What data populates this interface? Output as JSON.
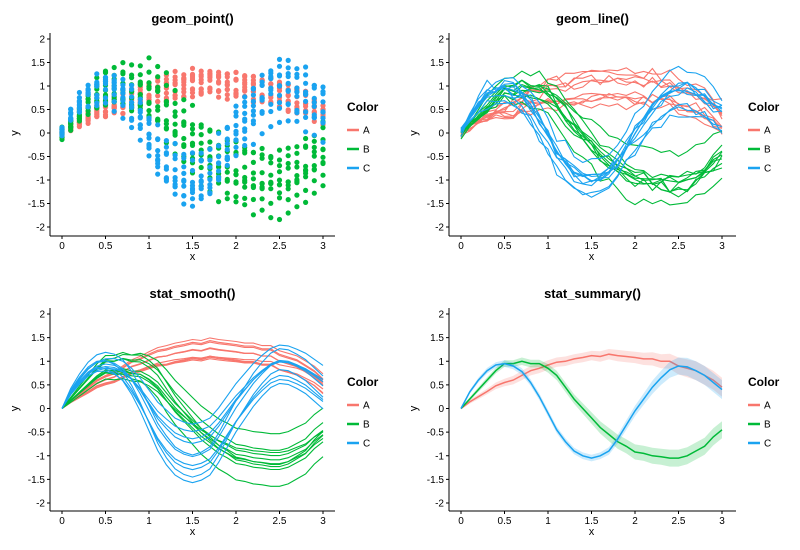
{
  "colors": {
    "A": "#F8766D",
    "B": "#00BA38",
    "C": "#1AA3F0"
  },
  "legend": {
    "title": "Color",
    "keys": [
      "A",
      "B",
      "C"
    ],
    "placement": "right"
  },
  "chart_data": [
    {
      "title": "geom_point()",
      "type": "scatter",
      "xlabel": "x",
      "ylabel": "y",
      "xlim": [
        0,
        3
      ],
      "ylim": [
        -2.1,
        2.05
      ],
      "xticks": [
        "0",
        "0.5",
        "1",
        "1.5",
        "2",
        "2.5",
        "3"
      ],
      "yticks": [
        "-2",
        "-1.5",
        "-1",
        "-0.5",
        "0",
        "0.5",
        "1",
        "1.5",
        "2"
      ],
      "grid": false,
      "note": "10 replicate noisy series per group sampled on x = 0..3 step 0.1",
      "series": [
        {
          "name": "A",
          "x": [
            0,
            0.1,
            0.2,
            0.3,
            0.4,
            0.5,
            0.6,
            0.7,
            0.8,
            0.9,
            1.0,
            1.1,
            1.2,
            1.3,
            1.4,
            1.5,
            1.6,
            1.7,
            1.8,
            1.9,
            2.0,
            2.1,
            2.2,
            2.3,
            2.4,
            2.5,
            2.6,
            2.7,
            2.8,
            2.9,
            3.0
          ],
          "values": [
            0.0,
            0.14,
            0.25,
            0.36,
            0.48,
            0.55,
            0.6,
            0.7,
            0.8,
            0.85,
            0.92,
            0.98,
            1.0,
            1.05,
            1.08,
            1.12,
            1.1,
            1.15,
            1.12,
            1.1,
            1.08,
            1.05,
            1.05,
            1.0,
            1.0,
            0.9,
            0.85,
            0.8,
            0.7,
            0.6,
            0.45
          ]
        },
        {
          "name": "B",
          "x": [
            0,
            0.1,
            0.2,
            0.3,
            0.4,
            0.5,
            0.6,
            0.7,
            0.8,
            0.9,
            1.0,
            1.1,
            1.2,
            1.3,
            1.4,
            1.5,
            1.6,
            1.7,
            1.8,
            1.9,
            2.0,
            2.1,
            2.2,
            2.3,
            2.4,
            2.5,
            2.6,
            2.7,
            2.8,
            2.9,
            3.0
          ],
          "values": [
            0.0,
            0.2,
            0.4,
            0.6,
            0.8,
            0.95,
            0.95,
            1.0,
            0.95,
            0.95,
            0.85,
            0.7,
            0.45,
            0.2,
            0.0,
            -0.2,
            -0.4,
            -0.55,
            -0.7,
            -0.8,
            -0.92,
            -0.95,
            -1.0,
            -1.02,
            -1.05,
            -1.05,
            -1.0,
            -0.9,
            -0.8,
            -0.6,
            -0.45
          ]
        },
        {
          "name": "C",
          "x": [
            0,
            0.1,
            0.2,
            0.3,
            0.4,
            0.5,
            0.6,
            0.7,
            0.8,
            0.9,
            1.0,
            1.1,
            1.2,
            1.3,
            1.4,
            1.5,
            1.6,
            1.7,
            1.8,
            1.9,
            2.0,
            2.1,
            2.2,
            2.3,
            2.4,
            2.5,
            2.6,
            2.7,
            2.8,
            2.9,
            3.0
          ],
          "values": [
            0.0,
            0.35,
            0.6,
            0.8,
            0.92,
            0.95,
            0.9,
            0.78,
            0.55,
            0.25,
            -0.1,
            -0.45,
            -0.7,
            -0.9,
            -1.0,
            -1.05,
            -1.0,
            -0.9,
            -0.65,
            -0.35,
            -0.05,
            0.2,
            0.45,
            0.65,
            0.82,
            0.9,
            0.88,
            0.8,
            0.7,
            0.55,
            0.4
          ]
        }
      ]
    },
    {
      "title": "geom_line()",
      "type": "line",
      "xlabel": "x",
      "ylabel": "y",
      "xlim": [
        0,
        3
      ],
      "ylim": [
        -2.1,
        2.05
      ],
      "xticks": [
        "0",
        "0.5",
        "1",
        "1.5",
        "2",
        "2.5",
        "3"
      ],
      "yticks": [
        "-2",
        "-1.5",
        "-1",
        "-0.5",
        "0",
        "0.5",
        "1",
        "1.5",
        "2"
      ],
      "grid": false,
      "note": "10 replicate noisy lines per group, same data as geom_point()",
      "series": [
        {
          "name": "A",
          "x": [
            0,
            0.1,
            0.2,
            0.3,
            0.4,
            0.5,
            0.6,
            0.7,
            0.8,
            0.9,
            1.0,
            1.1,
            1.2,
            1.3,
            1.4,
            1.5,
            1.6,
            1.7,
            1.8,
            1.9,
            2.0,
            2.1,
            2.2,
            2.3,
            2.4,
            2.5,
            2.6,
            2.7,
            2.8,
            2.9,
            3.0
          ],
          "values": [
            0.0,
            0.14,
            0.25,
            0.36,
            0.48,
            0.55,
            0.6,
            0.7,
            0.8,
            0.85,
            0.92,
            0.98,
            1.0,
            1.05,
            1.08,
            1.12,
            1.1,
            1.15,
            1.12,
            1.1,
            1.08,
            1.05,
            1.05,
            1.0,
            1.0,
            0.9,
            0.85,
            0.8,
            0.7,
            0.6,
            0.45
          ]
        },
        {
          "name": "B",
          "x": [
            0,
            0.1,
            0.2,
            0.3,
            0.4,
            0.5,
            0.6,
            0.7,
            0.8,
            0.9,
            1.0,
            1.1,
            1.2,
            1.3,
            1.4,
            1.5,
            1.6,
            1.7,
            1.8,
            1.9,
            2.0,
            2.1,
            2.2,
            2.3,
            2.4,
            2.5,
            2.6,
            2.7,
            2.8,
            2.9,
            3.0
          ],
          "values": [
            0.0,
            0.2,
            0.4,
            0.6,
            0.8,
            0.95,
            0.95,
            1.0,
            0.95,
            0.95,
            0.85,
            0.7,
            0.45,
            0.2,
            0.0,
            -0.2,
            -0.4,
            -0.55,
            -0.7,
            -0.8,
            -0.92,
            -0.95,
            -1.0,
            -1.02,
            -1.05,
            -1.05,
            -1.0,
            -0.9,
            -0.8,
            -0.6,
            -0.45
          ]
        },
        {
          "name": "C",
          "x": [
            0,
            0.1,
            0.2,
            0.3,
            0.4,
            0.5,
            0.6,
            0.7,
            0.8,
            0.9,
            1.0,
            1.1,
            1.2,
            1.3,
            1.4,
            1.5,
            1.6,
            1.7,
            1.8,
            1.9,
            2.0,
            2.1,
            2.2,
            2.3,
            2.4,
            2.5,
            2.6,
            2.7,
            2.8,
            2.9,
            3.0
          ],
          "values": [
            0.0,
            0.35,
            0.6,
            0.8,
            0.92,
            0.95,
            0.9,
            0.78,
            0.55,
            0.25,
            -0.1,
            -0.45,
            -0.7,
            -0.9,
            -1.0,
            -1.05,
            -1.0,
            -0.9,
            -0.65,
            -0.35,
            -0.05,
            0.2,
            0.45,
            0.65,
            0.82,
            0.9,
            0.88,
            0.8,
            0.7,
            0.55,
            0.4
          ]
        }
      ]
    },
    {
      "title": "stat_smooth()",
      "type": "line",
      "xlabel": "x",
      "ylabel": "y",
      "xlim": [
        0,
        3
      ],
      "ylim": [
        -2.1,
        2.05
      ],
      "xticks": [
        "0",
        "0.5",
        "1",
        "1.5",
        "2",
        "2.5",
        "3"
      ],
      "yticks": [
        "-2",
        "-1.5",
        "-1",
        "-0.5",
        "0",
        "0.5",
        "1",
        "1.5",
        "2"
      ],
      "grid": false,
      "note": "10 smoothed curves per group",
      "series": [
        {
          "name": "A",
          "x": [
            0,
            0.1,
            0.2,
            0.3,
            0.4,
            0.5,
            0.6,
            0.7,
            0.8,
            0.9,
            1.0,
            1.1,
            1.2,
            1.3,
            1.4,
            1.5,
            1.6,
            1.7,
            1.8,
            1.9,
            2.0,
            2.1,
            2.2,
            2.3,
            2.4,
            2.5,
            2.6,
            2.7,
            2.8,
            2.9,
            3.0
          ],
          "values": [
            0.0,
            0.14,
            0.25,
            0.36,
            0.48,
            0.55,
            0.6,
            0.7,
            0.8,
            0.85,
            0.92,
            0.98,
            1.0,
            1.05,
            1.08,
            1.12,
            1.1,
            1.15,
            1.12,
            1.1,
            1.08,
            1.05,
            1.05,
            1.0,
            1.0,
            0.9,
            0.85,
            0.8,
            0.7,
            0.6,
            0.45
          ]
        },
        {
          "name": "B",
          "x": [
            0,
            0.1,
            0.2,
            0.3,
            0.4,
            0.5,
            0.6,
            0.7,
            0.8,
            0.9,
            1.0,
            1.1,
            1.2,
            1.3,
            1.4,
            1.5,
            1.6,
            1.7,
            1.8,
            1.9,
            2.0,
            2.1,
            2.2,
            2.3,
            2.4,
            2.5,
            2.6,
            2.7,
            2.8,
            2.9,
            3.0
          ],
          "values": [
            0.0,
            0.2,
            0.4,
            0.6,
            0.8,
            0.95,
            0.95,
            1.0,
            0.95,
            0.95,
            0.85,
            0.7,
            0.45,
            0.2,
            0.0,
            -0.2,
            -0.4,
            -0.55,
            -0.7,
            -0.8,
            -0.92,
            -0.95,
            -1.0,
            -1.02,
            -1.05,
            -1.05,
            -1.0,
            -0.9,
            -0.8,
            -0.6,
            -0.45
          ]
        },
        {
          "name": "C",
          "x": [
            0,
            0.1,
            0.2,
            0.3,
            0.4,
            0.5,
            0.6,
            0.7,
            0.8,
            0.9,
            1.0,
            1.1,
            1.2,
            1.3,
            1.4,
            1.5,
            1.6,
            1.7,
            1.8,
            1.9,
            2.0,
            2.1,
            2.2,
            2.3,
            2.4,
            2.5,
            2.6,
            2.7,
            2.8,
            2.9,
            3.0
          ],
          "values": [
            0.0,
            0.35,
            0.6,
            0.8,
            0.92,
            0.95,
            0.9,
            0.78,
            0.55,
            0.25,
            -0.1,
            -0.45,
            -0.7,
            -0.9,
            -1.0,
            -1.05,
            -1.0,
            -0.9,
            -0.65,
            -0.35,
            -0.05,
            0.2,
            0.45,
            0.65,
            0.82,
            0.9,
            0.88,
            0.8,
            0.7,
            0.55,
            0.4
          ]
        }
      ]
    },
    {
      "title": "stat_summary()",
      "type": "area",
      "xlabel": "x",
      "ylabel": "y",
      "xlim": [
        0,
        3
      ],
      "ylim": [
        -2.1,
        2.05
      ],
      "xticks": [
        "0",
        "0.5",
        "1",
        "1.5",
        "2",
        "2.5",
        "3"
      ],
      "yticks": [
        "-2",
        "-1.5",
        "-1",
        "-0.5",
        "0",
        "0.5",
        "1",
        "1.5",
        "2"
      ],
      "grid": false,
      "note": "mean line per group with shaded interval band",
      "series": [
        {
          "name": "A",
          "x": [
            0,
            0.1,
            0.2,
            0.3,
            0.4,
            0.5,
            0.6,
            0.7,
            0.8,
            0.9,
            1.0,
            1.1,
            1.2,
            1.3,
            1.4,
            1.5,
            1.6,
            1.7,
            1.8,
            1.9,
            2.0,
            2.1,
            2.2,
            2.3,
            2.4,
            2.5,
            2.6,
            2.7,
            2.8,
            2.9,
            3.0
          ],
          "values": [
            0.0,
            0.14,
            0.25,
            0.36,
            0.48,
            0.55,
            0.6,
            0.7,
            0.8,
            0.85,
            0.92,
            0.98,
            1.0,
            1.05,
            1.08,
            1.12,
            1.1,
            1.15,
            1.12,
            1.1,
            1.08,
            1.05,
            1.05,
            1.0,
            1.0,
            0.9,
            0.85,
            0.8,
            0.7,
            0.6,
            0.45
          ],
          "band": [
            0.02,
            0.04,
            0.05,
            0.06,
            0.07,
            0.08,
            0.09,
            0.1,
            0.1,
            0.1,
            0.1,
            0.1,
            0.1,
            0.1,
            0.1,
            0.1,
            0.11,
            0.11,
            0.12,
            0.12,
            0.12,
            0.13,
            0.14,
            0.15,
            0.16,
            0.18,
            0.19,
            0.2,
            0.2,
            0.2,
            0.2
          ]
        },
        {
          "name": "B",
          "x": [
            0,
            0.1,
            0.2,
            0.3,
            0.4,
            0.5,
            0.6,
            0.7,
            0.8,
            0.9,
            1.0,
            1.1,
            1.2,
            1.3,
            1.4,
            1.5,
            1.6,
            1.7,
            1.8,
            1.9,
            2.0,
            2.1,
            2.2,
            2.3,
            2.4,
            2.5,
            2.6,
            2.7,
            2.8,
            2.9,
            3.0
          ],
          "values": [
            0.0,
            0.2,
            0.4,
            0.6,
            0.8,
            0.95,
            0.95,
            1.0,
            0.95,
            0.95,
            0.85,
            0.7,
            0.45,
            0.2,
            0.0,
            -0.2,
            -0.4,
            -0.55,
            -0.7,
            -0.8,
            -0.92,
            -0.95,
            -1.0,
            -1.02,
            -1.05,
            -1.05,
            -1.0,
            -0.9,
            -0.8,
            -0.6,
            -0.45
          ],
          "band": [
            0.02,
            0.04,
            0.05,
            0.06,
            0.06,
            0.07,
            0.07,
            0.08,
            0.08,
            0.08,
            0.09,
            0.1,
            0.1,
            0.1,
            0.11,
            0.12,
            0.13,
            0.14,
            0.15,
            0.15,
            0.16,
            0.16,
            0.17,
            0.17,
            0.18,
            0.18,
            0.18,
            0.18,
            0.18,
            0.18,
            0.18
          ]
        },
        {
          "name": "C",
          "x": [
            0,
            0.1,
            0.2,
            0.3,
            0.4,
            0.5,
            0.6,
            0.7,
            0.8,
            0.9,
            1.0,
            1.1,
            1.2,
            1.3,
            1.4,
            1.5,
            1.6,
            1.7,
            1.8,
            1.9,
            2.0,
            2.1,
            2.2,
            2.3,
            2.4,
            2.5,
            2.6,
            2.7,
            2.8,
            2.9,
            3.0
          ],
          "values": [
            0.0,
            0.35,
            0.6,
            0.8,
            0.92,
            0.95,
            0.9,
            0.78,
            0.55,
            0.25,
            -0.1,
            -0.45,
            -0.7,
            -0.9,
            -1.0,
            -1.05,
            -1.0,
            -0.9,
            -0.65,
            -0.35,
            -0.05,
            0.2,
            0.45,
            0.65,
            0.82,
            0.9,
            0.88,
            0.8,
            0.7,
            0.55,
            0.4
          ],
          "band": [
            0.02,
            0.04,
            0.05,
            0.06,
            0.06,
            0.07,
            0.07,
            0.07,
            0.07,
            0.07,
            0.07,
            0.07,
            0.07,
            0.07,
            0.07,
            0.07,
            0.07,
            0.08,
            0.09,
            0.1,
            0.11,
            0.12,
            0.14,
            0.15,
            0.17,
            0.18,
            0.19,
            0.2,
            0.2,
            0.2,
            0.2
          ]
        }
      ]
    }
  ]
}
